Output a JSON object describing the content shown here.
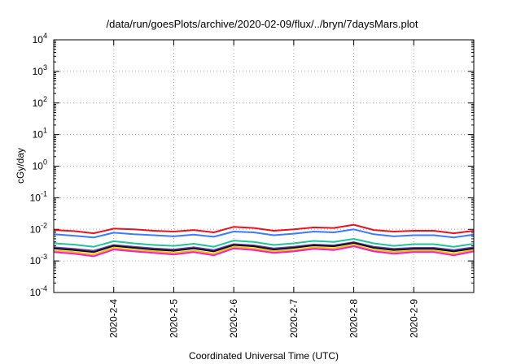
{
  "chart_data": {
    "type": "line",
    "title": "/data/run/goesPlots/archive/2020-02-09/flux/../bryn/7daysMars.plot",
    "xlabel": "Coordinated Universal Time (UTC)",
    "ylabel": "cGy/day",
    "yscale": "log",
    "ylim": [
      0.0001,
      10000
    ],
    "xlim": [
      "2020-02-03 00:00",
      "2020-02-10 00:00"
    ],
    "grid": true,
    "y_ticks": [
      {
        "mantissa": "10",
        "exp": "-4",
        "value": 0.0001
      },
      {
        "mantissa": "10",
        "exp": "-3",
        "value": 0.001
      },
      {
        "mantissa": "10",
        "exp": "-2",
        "value": 0.01
      },
      {
        "mantissa": "10",
        "exp": "-1",
        "value": 0.1
      },
      {
        "mantissa": "10",
        "exp": "0",
        "value": 1
      },
      {
        "mantissa": "10",
        "exp": "1",
        "value": 10
      },
      {
        "mantissa": "10",
        "exp": "2",
        "value": 100
      },
      {
        "mantissa": "10",
        "exp": "3",
        "value": 1000
      },
      {
        "mantissa": "10",
        "exp": "4",
        "value": 10000
      }
    ],
    "x_ticks": [
      "2020-2-4",
      "2020-2-5",
      "2020-2-6",
      "2020-2-7",
      "2020-2-8",
      "2020-2-9"
    ],
    "x": [
      "2020-02-03 00:00",
      "2020-02-03 08:00",
      "2020-02-03 16:00",
      "2020-02-04 00:00",
      "2020-02-04 08:00",
      "2020-02-04 16:00",
      "2020-02-05 00:00",
      "2020-02-05 08:00",
      "2020-02-05 16:00",
      "2020-02-06 00:00",
      "2020-02-06 08:00",
      "2020-02-06 16:00",
      "2020-02-07 00:00",
      "2020-02-07 08:00",
      "2020-02-07 16:00",
      "2020-02-08 00:00",
      "2020-02-08 08:00",
      "2020-02-08 16:00",
      "2020-02-09 00:00",
      "2020-02-09 08:00",
      "2020-02-09 16:00",
      "2020-02-10 00:00"
    ],
    "series": [
      {
        "color": "#e8141c",
        "values": [
          0.0095,
          0.0088,
          0.0075,
          0.0105,
          0.01,
          0.009,
          0.0085,
          0.0095,
          0.008,
          0.012,
          0.011,
          0.009,
          0.01,
          0.0115,
          0.011,
          0.014,
          0.0095,
          0.0085,
          0.009,
          0.009,
          0.0075,
          0.009
        ]
      },
      {
        "color": "#3a7bff",
        "values": [
          0.007,
          0.0063,
          0.0055,
          0.0078,
          0.007,
          0.0065,
          0.006,
          0.0068,
          0.0058,
          0.0085,
          0.008,
          0.0065,
          0.0073,
          0.0085,
          0.008,
          0.01,
          0.007,
          0.006,
          0.0065,
          0.0065,
          0.0055,
          0.0068
        ]
      },
      {
        "color": "#21c49a",
        "values": [
          0.0036,
          0.0033,
          0.0028,
          0.0042,
          0.0036,
          0.0032,
          0.003,
          0.0035,
          0.0028,
          0.0044,
          0.004,
          0.0032,
          0.0036,
          0.0043,
          0.004,
          0.005,
          0.0036,
          0.003,
          0.0034,
          0.0034,
          0.0028,
          0.0035
        ]
      },
      {
        "color": "#6a3db5",
        "values": [
          0.0027,
          0.0024,
          0.0021,
          0.0032,
          0.0028,
          0.0025,
          0.0023,
          0.0027,
          0.0022,
          0.0034,
          0.0031,
          0.0025,
          0.0028,
          0.0033,
          0.0031,
          0.0039,
          0.0028,
          0.0024,
          0.0026,
          0.0026,
          0.0022,
          0.0027
        ]
      },
      {
        "color": "#111111",
        "values": [
          0.0025,
          0.0022,
          0.0019,
          0.003,
          0.0026,
          0.0023,
          0.0021,
          0.0025,
          0.002,
          0.0032,
          0.0029,
          0.0023,
          0.0026,
          0.0031,
          0.0029,
          0.0037,
          0.0026,
          0.0022,
          0.0024,
          0.0024,
          0.002,
          0.0025
        ]
      },
      {
        "color": "#f2c200",
        "values": [
          0.0021,
          0.0019,
          0.0016,
          0.0026,
          0.0022,
          0.002,
          0.0018,
          0.0021,
          0.0017,
          0.0028,
          0.0025,
          0.002,
          0.0022,
          0.0027,
          0.0025,
          0.0032,
          0.0022,
          0.0019,
          0.0021,
          0.0021,
          0.0017,
          0.0022
        ]
      },
      {
        "color": "#f01fd0",
        "values": [
          0.0019,
          0.0017,
          0.0014,
          0.0023,
          0.002,
          0.0018,
          0.0016,
          0.0019,
          0.0015,
          0.0025,
          0.0022,
          0.0018,
          0.002,
          0.0024,
          0.0022,
          0.0029,
          0.002,
          0.0017,
          0.0019,
          0.0019,
          0.0015,
          0.002
        ]
      }
    ]
  }
}
